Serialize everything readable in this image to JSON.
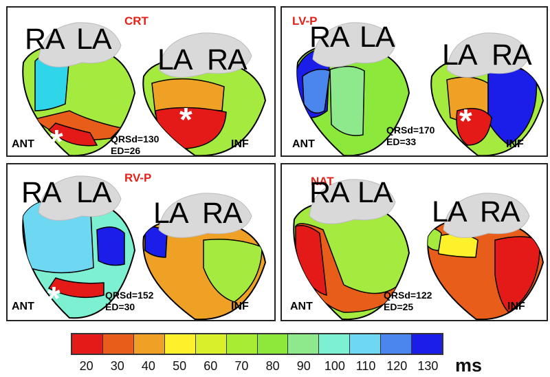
{
  "panels": [
    {
      "mode": "CRT",
      "qrsd": "QRSd=130",
      "ed": "ED=26",
      "ant": "ANT",
      "inf": "INF",
      "front": [
        "RA",
        "LA"
      ],
      "back": [
        "LA",
        "RA"
      ],
      "pacing_marker": "*"
    },
    {
      "mode": "LV-P",
      "qrsd": "QRSd=170",
      "ed": "ED=33",
      "ant": "ANT",
      "inf": "INF",
      "front": [
        "RA",
        "LA"
      ],
      "back": [
        "LA",
        "RA"
      ],
      "pacing_marker": "*"
    },
    {
      "mode": "RV-P",
      "qrsd": "QRSd=152",
      "ed": "ED=30",
      "ant": "ANT",
      "inf": "INF",
      "front": [
        "RA",
        "LA"
      ],
      "back": [
        "LA",
        "RA"
      ],
      "pacing_marker": "*"
    },
    {
      "mode": "NAT",
      "qrsd": "QRSd=122",
      "ed": "ED=25",
      "ant": "ANT",
      "inf": "INF",
      "front": [
        "RA",
        "LA"
      ],
      "back": [
        "LA",
        "RA"
      ],
      "pacing_marker": ""
    }
  ],
  "colorbar": {
    "unit": "ms",
    "ticks": [
      "20",
      "30",
      "40",
      "50",
      "60",
      "70",
      "80",
      "90",
      "100",
      "110",
      "120",
      "130"
    ],
    "colors": [
      "#e31a17",
      "#e85d19",
      "#efa126",
      "#fdf12b",
      "#d8f02a",
      "#a8ec33",
      "#8de83c",
      "#8de98c",
      "#7cf0d0",
      "#6ed8f3",
      "#4a86ee",
      "#1a1ee8"
    ]
  },
  "colors": {
    "atria": "#d9d9d9",
    "mode_title": "#e32118"
  }
}
